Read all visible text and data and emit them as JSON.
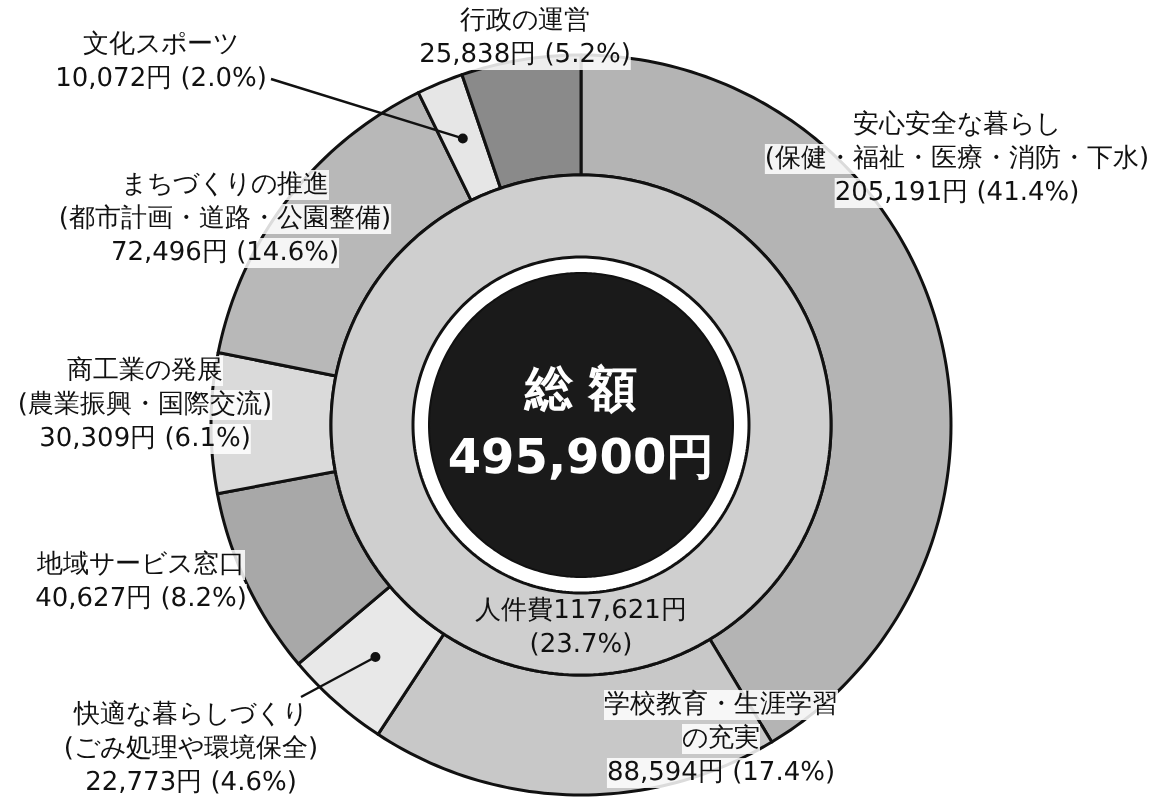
{
  "chart_data": {
    "type": "donut",
    "title": "総 額",
    "subtitle": "495,900円",
    "categories": [
      "安心安全な暮らし(保健・福祉・医療・消防・下水)",
      "学校教育・生涯学習の充実",
      "快適な暮らしづくり(ごみ処理や環境保全)",
      "地域サービス窓口",
      "商工業の発展(農業振興・国際交流)",
      "まちづくりの推進(都市計画・道路・公園整備)",
      "文化スポーツ",
      "行政の運営"
    ],
    "values": [
      205191,
      88594,
      22773,
      40627,
      30309,
      72496,
      10072,
      25838
    ],
    "colors": [
      "#b4b4b4",
      "#c8c8c8",
      "#e8e8e8",
      "#a8a8a8",
      "#dadada",
      "#b8b8b8",
      "#e6e6e6",
      "#8a8a8a"
    ],
    "value_labels": [
      "205,191円 (41.4%)",
      "88,594円 (17.4%)",
      "22,773円 (4.6%)",
      "40,627円 (8.2%)",
      "30,309円 (6.1%)",
      "72,496円 (14.6%)",
      "10,072円 (2.0%)",
      "25,838円 (5.2%)"
    ],
    "annotations": [
      "人件費117,621円 (23.7%)"
    ]
  }
}
